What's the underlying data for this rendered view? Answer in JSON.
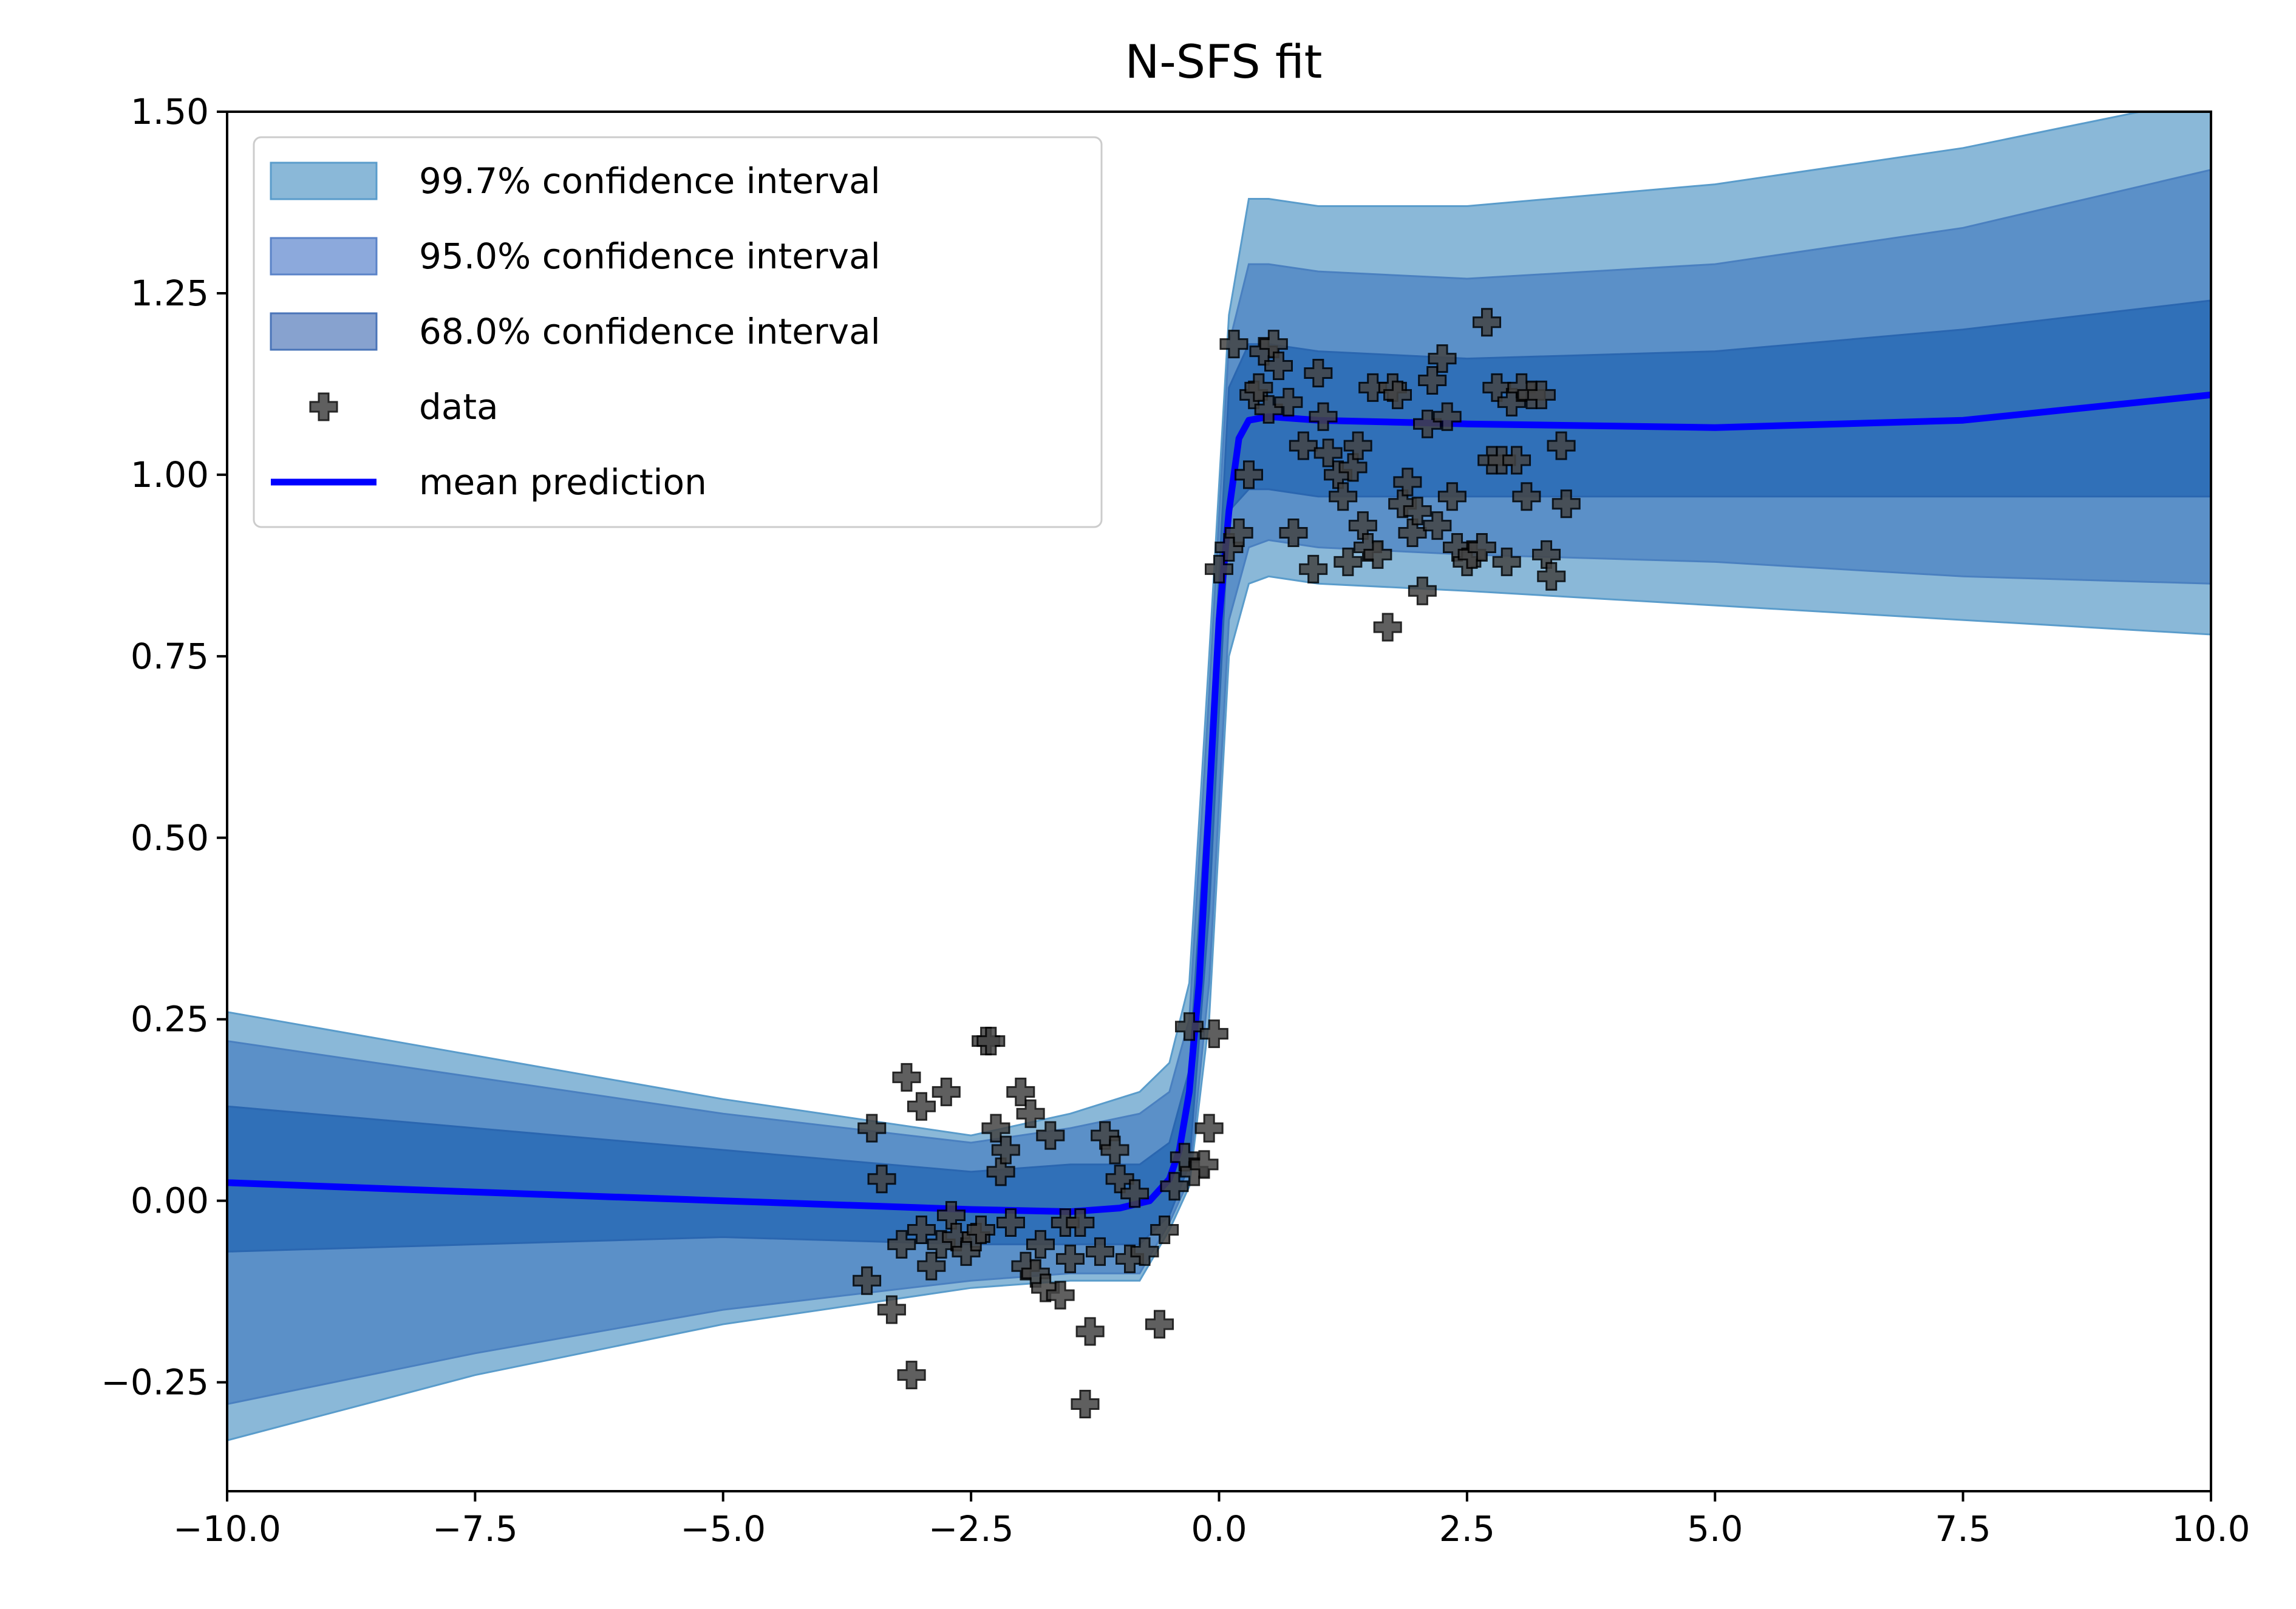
{
  "chart_data": {
    "type": "line",
    "title": "N-SFS fit",
    "xlabel": "",
    "ylabel": "",
    "xlim": [
      -10,
      10
    ],
    "ylim": [
      -0.4,
      1.5
    ],
    "x_ticks": [
      -10,
      -7.5,
      -5,
      -2.5,
      0,
      2.5,
      5,
      7.5,
      10
    ],
    "x_tick_labels": [
      "−10.0",
      "−7.5",
      "−5.0",
      "−2.5",
      "0.0",
      "2.5",
      "5.0",
      "7.5",
      "10.0"
    ],
    "y_ticks": [
      -0.25,
      0,
      0.25,
      0.5,
      0.75,
      1.0,
      1.25,
      1.5
    ],
    "y_tick_labels": [
      "−0.25",
      "0.00",
      "0.25",
      "0.50",
      "0.75",
      "1.00",
      "1.25",
      "1.50"
    ],
    "grid": false,
    "legend_position": "top-left",
    "bands": [
      {
        "name": "99.7% confidence interval",
        "color": "#8ab8d8",
        "edge": "#5a9ccb",
        "x": [
          -10,
          -7.5,
          -5,
          -2.5,
          -1.5,
          -0.8,
          -0.5,
          -0.3,
          -0.1,
          0.1,
          0.3,
          0.5,
          1,
          2.5,
          5,
          7.5,
          10
        ],
        "upper": [
          0.26,
          0.2,
          0.14,
          0.09,
          0.12,
          0.15,
          0.19,
          0.3,
          0.75,
          1.22,
          1.38,
          1.38,
          1.37,
          1.37,
          1.4,
          1.45,
          1.52
        ],
        "lower": [
          -0.33,
          -0.24,
          -0.17,
          -0.12,
          -0.11,
          -0.11,
          -0.04,
          0.02,
          0.25,
          0.75,
          0.85,
          0.86,
          0.85,
          0.84,
          0.82,
          0.8,
          0.78
        ]
      },
      {
        "name": "95.0% confidence interval",
        "color": "#5b90c8",
        "edge": "#4a80c0",
        "x": [
          -10,
          -7.5,
          -5,
          -2.5,
          -1.5,
          -0.8,
          -0.5,
          -0.3,
          -0.1,
          0.1,
          0.3,
          0.5,
          1,
          2.5,
          5,
          7.5,
          10
        ],
        "upper": [
          0.22,
          0.17,
          0.12,
          0.08,
          0.1,
          0.12,
          0.15,
          0.25,
          0.7,
          1.18,
          1.29,
          1.29,
          1.28,
          1.27,
          1.29,
          1.34,
          1.42
        ],
        "lower": [
          -0.28,
          -0.21,
          -0.15,
          -0.11,
          -0.1,
          -0.1,
          -0.03,
          0.03,
          0.3,
          0.8,
          0.9,
          0.91,
          0.9,
          0.89,
          0.88,
          0.86,
          0.85
        ]
      },
      {
        "name": "68.0% confidence interval",
        "color": "#3070b8",
        "edge": "#2a66b0",
        "x": [
          -10,
          -7.5,
          -5,
          -2.5,
          -1.5,
          -0.8,
          -0.5,
          -0.3,
          -0.1,
          0.1,
          0.3,
          0.5,
          1,
          2.5,
          5,
          7.5,
          10
        ],
        "upper": [
          0.13,
          0.1,
          0.07,
          0.04,
          0.05,
          0.05,
          0.08,
          0.18,
          0.6,
          1.12,
          1.18,
          1.18,
          1.17,
          1.16,
          1.17,
          1.2,
          1.24
        ],
        "lower": [
          -0.07,
          -0.06,
          -0.05,
          -0.06,
          -0.06,
          -0.06,
          -0.02,
          0.05,
          0.4,
          0.95,
          0.98,
          0.98,
          0.97,
          0.97,
          0.97,
          0.97,
          0.97
        ]
      }
    ],
    "series": [
      {
        "name": "mean prediction",
        "type": "line",
        "color": "#0000ff",
        "x": [
          -10,
          -7.5,
          -5,
          -2.5,
          -1.5,
          -1,
          -0.7,
          -0.5,
          -0.4,
          -0.3,
          -0.2,
          -0.1,
          0,
          0.1,
          0.2,
          0.3,
          0.5,
          1,
          2.5,
          5,
          7.5,
          10
        ],
        "y": [
          0.025,
          0.012,
          0.0,
          -0.012,
          -0.015,
          -0.01,
          0.0,
          0.03,
          0.07,
          0.15,
          0.3,
          0.55,
          0.8,
          0.95,
          1.05,
          1.075,
          1.08,
          1.075,
          1.07,
          1.065,
          1.075,
          1.11
        ]
      },
      {
        "name": "data",
        "type": "scatter",
        "color": "#222222",
        "marker": "plus",
        "points": [
          [
            -3.5,
            0.1
          ],
          [
            -3.4,
            0.03
          ],
          [
            -3.3,
            -0.15
          ],
          [
            -3.55,
            -0.11
          ],
          [
            -3.2,
            -0.06
          ],
          [
            -3.15,
            0.17
          ],
          [
            -3.1,
            -0.24
          ],
          [
            -3.0,
            0.13
          ],
          [
            -3.0,
            -0.04
          ],
          [
            -2.9,
            -0.09
          ],
          [
            -2.8,
            -0.06
          ],
          [
            -2.75,
            0.15
          ],
          [
            -2.7,
            -0.02
          ],
          [
            -2.65,
            -0.05
          ],
          [
            -2.55,
            -0.07
          ],
          [
            -2.45,
            -0.05
          ],
          [
            -2.4,
            -0.04
          ],
          [
            -2.35,
            0.22
          ],
          [
            -2.3,
            0.22
          ],
          [
            -2.25,
            0.1
          ],
          [
            -2.2,
            0.04
          ],
          [
            -2.15,
            0.07
          ],
          [
            -2.1,
            -0.03
          ],
          [
            -2.0,
            0.15
          ],
          [
            -1.95,
            -0.09
          ],
          [
            -1.9,
            0.12
          ],
          [
            -1.85,
            -0.1
          ],
          [
            -1.8,
            -0.06
          ],
          [
            -1.75,
            -0.12
          ],
          [
            -1.7,
            0.09
          ],
          [
            -1.6,
            -0.13
          ],
          [
            -1.55,
            -0.03
          ],
          [
            -1.5,
            -0.08
          ],
          [
            -1.4,
            -0.03
          ],
          [
            -1.35,
            -0.28
          ],
          [
            -1.3,
            -0.18
          ],
          [
            -1.2,
            -0.07
          ],
          [
            -1.15,
            0.09
          ],
          [
            -1.05,
            0.07
          ],
          [
            -1.0,
            0.03
          ],
          [
            -0.9,
            -0.08
          ],
          [
            -0.85,
            0.01
          ],
          [
            -0.75,
            -0.07
          ],
          [
            -0.6,
            -0.17
          ],
          [
            -0.55,
            -0.04
          ],
          [
            -0.45,
            0.02
          ],
          [
            -0.35,
            0.06
          ],
          [
            -0.3,
            0.24
          ],
          [
            -0.25,
            0.04
          ],
          [
            -0.15,
            0.05
          ],
          [
            -0.1,
            0.1
          ],
          [
            -0.05,
            0.23
          ],
          [
            0.0,
            0.87
          ],
          [
            0.1,
            0.9
          ],
          [
            0.15,
            1.18
          ],
          [
            0.2,
            0.92
          ],
          [
            0.3,
            1.0
          ],
          [
            0.35,
            1.11
          ],
          [
            0.4,
            1.12
          ],
          [
            0.45,
            1.17
          ],
          [
            0.5,
            1.09
          ],
          [
            0.55,
            1.18
          ],
          [
            0.6,
            1.15
          ],
          [
            0.7,
            1.1
          ],
          [
            0.75,
            0.92
          ],
          [
            0.85,
            1.04
          ],
          [
            0.95,
            0.87
          ],
          [
            1.0,
            1.14
          ],
          [
            1.05,
            1.08
          ],
          [
            1.1,
            1.03
          ],
          [
            1.2,
            1.0
          ],
          [
            1.25,
            0.97
          ],
          [
            1.3,
            0.88
          ],
          [
            1.35,
            1.01
          ],
          [
            1.4,
            1.04
          ],
          [
            1.45,
            0.93
          ],
          [
            1.5,
            0.9
          ],
          [
            1.55,
            1.12
          ],
          [
            1.6,
            0.89
          ],
          [
            1.7,
            0.79
          ],
          [
            1.75,
            1.12
          ],
          [
            1.8,
            1.11
          ],
          [
            1.85,
            0.96
          ],
          [
            1.9,
            0.99
          ],
          [
            1.95,
            0.92
          ],
          [
            2.0,
            0.95
          ],
          [
            2.05,
            0.84
          ],
          [
            2.1,
            1.07
          ],
          [
            2.15,
            1.13
          ],
          [
            2.2,
            0.93
          ],
          [
            2.25,
            1.16
          ],
          [
            2.3,
            1.08
          ],
          [
            2.35,
            0.97
          ],
          [
            2.4,
            0.9
          ],
          [
            2.5,
            0.88
          ],
          [
            2.55,
            0.89
          ],
          [
            2.65,
            0.9
          ],
          [
            2.7,
            1.21
          ],
          [
            2.75,
            1.02
          ],
          [
            2.8,
            1.12
          ],
          [
            2.85,
            1.02
          ],
          [
            2.9,
            0.88
          ],
          [
            2.95,
            1.1
          ],
          [
            3.0,
            1.02
          ],
          [
            3.05,
            1.12
          ],
          [
            3.1,
            0.97
          ],
          [
            3.15,
            1.11
          ],
          [
            3.25,
            1.11
          ],
          [
            3.3,
            0.89
          ],
          [
            3.35,
            0.86
          ],
          [
            3.45,
            1.04
          ],
          [
            3.5,
            0.96
          ]
        ]
      }
    ],
    "legend": [
      {
        "kind": "band",
        "label": "99.7% confidence interval",
        "color": "#8ab8d8",
        "edge": "#5a9ccb"
      },
      {
        "kind": "band",
        "label": "95.0% confidence interval",
        "color": "#8ca9dc",
        "edge": "#5a83c8"
      },
      {
        "kind": "band",
        "label": "68.0% confidence interval",
        "color": "#87a2cf",
        "edge": "#4a74b8"
      },
      {
        "kind": "marker",
        "label": "data",
        "color": "#222222"
      },
      {
        "kind": "line",
        "label": "mean prediction",
        "color": "#0000ff"
      }
    ]
  }
}
